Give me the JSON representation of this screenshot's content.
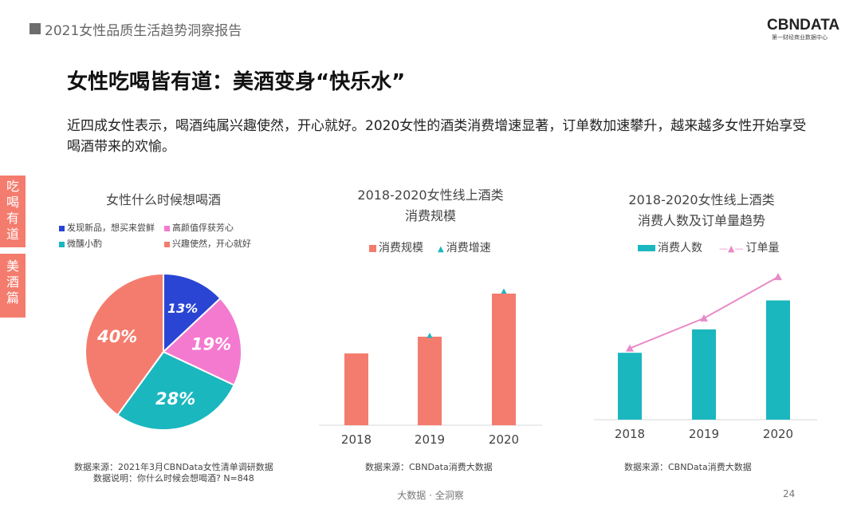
{
  "header": {
    "report_title": "2021女性品质生活趋势洞察报告",
    "logo_text": "CBNDATA",
    "logo_subtext": "第一财经商业数据中心"
  },
  "headline": "女性吃喝皆有道：美酒变身“快乐水”",
  "lead_text": "近四成女性表示，喝酒纯属兴趣使然，开心就好。2020女性的酒类消费增速显著，订单数加速攀升，越来越多女性开始享受喝酒带来的欢愉。",
  "side_tabs": [
    {
      "chars": [
        "吃",
        "喝",
        "有",
        "道"
      ]
    },
    {
      "chars": [
        "美",
        "酒",
        "篇"
      ]
    }
  ],
  "colors": {
    "blue": "#2a45d4",
    "pink": "#f47ad0",
    "teal": "#1ab7bf",
    "salmon": "#f47c6e",
    "bar_salmon": "#f47c6e",
    "bar_teal": "#1ab7bf",
    "line_pink": "#e98ac8"
  },
  "sources": {
    "left_1": "数据来源：2021年3月CBNData女性清单调研数据",
    "left_2": "数据说明：你什么时候会想喝酒? N=848",
    "mid": "数据来源：CBNData消费大数据",
    "right": "数据来源：CBNData消费大数据"
  },
  "footer": {
    "text": "大数据 · 全洞察",
    "page": "24"
  },
  "chart_data": [
    {
      "type": "pie",
      "title": "女性什么时候想喝酒",
      "legend": [
        "发现新品，想买来尝鲜",
        "高颜值俘获芳心",
        "微醺小酌",
        "兴趣使然，开心就好"
      ],
      "values": [
        13,
        19,
        28,
        40
      ],
      "labels": [
        "13%",
        "19%",
        "28%",
        "40%"
      ],
      "colors": [
        "#2a45d4",
        "#f47ad0",
        "#1ab7bf",
        "#f47c6e"
      ]
    },
    {
      "type": "bar",
      "title_line1": "2018-2020女性线上酒类",
      "title_line2": "消费规模",
      "categories": [
        "2018",
        "2019",
        "2020"
      ],
      "series": [
        {
          "name": "消费规模",
          "values": [
            30,
            37,
            55
          ]
        },
        {
          "name": "消费增速",
          "values": [
            null,
            37.5,
            56
          ]
        }
      ],
      "ylim": [
        0,
        60
      ]
    },
    {
      "type": "bar",
      "title_line1": "2018-2020女性线上酒类",
      "title_line2": "消费人数及订单量趋势",
      "categories": [
        "2018",
        "2019",
        "2020"
      ],
      "series": [
        {
          "name": "消费人数",
          "values": [
            30,
            40.5,
            53.5
          ]
        },
        {
          "name": "订单量",
          "values": [
            32,
            45.5,
            64
          ]
        }
      ],
      "ylim": [
        0,
        68
      ]
    }
  ]
}
